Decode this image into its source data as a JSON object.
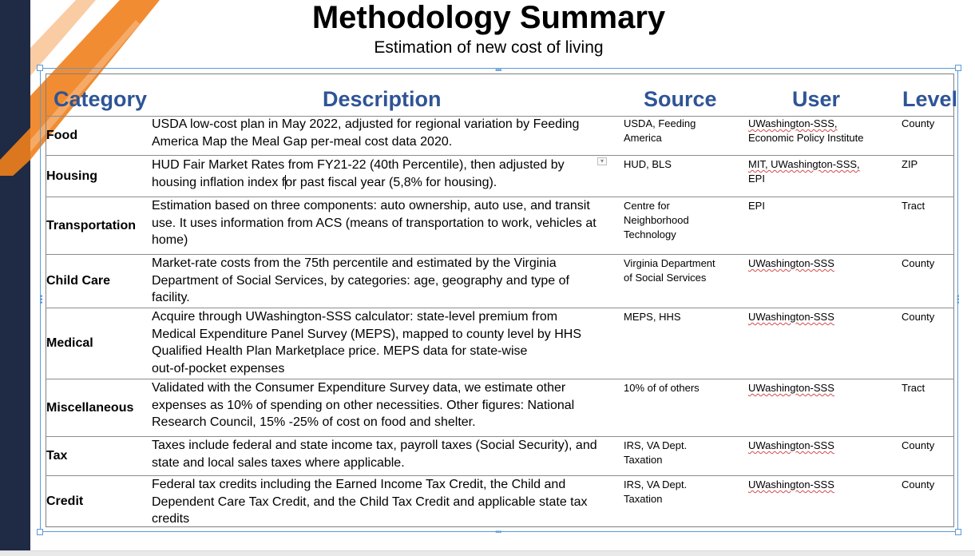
{
  "header": {
    "title": "Methodology Summary",
    "subtitle": "Estimation of new cost of living"
  },
  "table": {
    "columns": [
      "Category",
      "Description",
      "Source",
      "User",
      "Level"
    ],
    "rows": [
      {
        "category": "Food",
        "description": [
          "USDA low-cost plan in May 2022, adjusted for regional variation by Feeding",
          "America Map the Meal Gap per-meal cost data 2020."
        ],
        "source": [
          "USDA, Feeding",
          "America"
        ],
        "user": [
          "UWashington-SSS,",
          "Economic Policy Institute"
        ],
        "level": "County"
      },
      {
        "category": "Housing",
        "description": [
          "HUD Fair Market Rates from FY21-22 (40th Percentile), then adjusted by",
          "housing inflation index for past fiscal year (5,8% for housing)."
        ],
        "source": [
          "HUD, BLS"
        ],
        "user": [
          "MIT, UWashington-SSS,",
          " EPI"
        ],
        "level": "ZIP"
      },
      {
        "category": "Transportation",
        "description": [
          "Estimation based on three components: auto ownership, auto use, and transit",
          "use. It uses information from ACS (means of transportation to work, vehicles at",
          "home)"
        ],
        "source": [
          "Centre for",
          "Neighborhood",
          "Technology"
        ],
        "user": [
          "EPI"
        ],
        "level": "Tract"
      },
      {
        "category": "Child Care",
        "description": [
          "Market-rate costs from the 75th percentile and estimated by the Virginia",
          "Department of Social Services, by categories: age, geography and type of",
          "facility."
        ],
        "source": [
          "Virginia Department",
          "of Social Services"
        ],
        "user": [
          "UWashington-SSS"
        ],
        "level": "County"
      },
      {
        "category": "Medical",
        "description": [
          "Acquire through UWashington-SSS calculator: state-level premium from",
          "Medical Expenditure Panel Survey (MEPS), mapped to county level by HHS",
          "Qualified Health Plan Marketplace price. MEPS  data for state-wise",
          "out-of-pocket expenses"
        ],
        "source": [
          "MEPS, HHS"
        ],
        "user": [
          "UWashington-SSS"
        ],
        "level": "County"
      },
      {
        "category": "Miscellaneous",
        "description": [
          "Validated with the  Consumer Expenditure Survey data, we estimate other",
          "expenses as 10% of  spending on other necessities. Other figures: National",
          "Research Council, 15% -25% of cost on food and shelter."
        ],
        "source": [
          "10% of of others"
        ],
        "user": [
          "UWashington-SSS"
        ],
        "level": "Tract"
      },
      {
        "category": "Tax",
        "description": [
          "Taxes include federal and state income tax, payroll taxes (Social Security), and",
          "state and local sales taxes where applicable."
        ],
        "source": [
          "IRS, VA Dept.",
          "Taxation"
        ],
        "user": [
          "UWashington-SSS"
        ],
        "level": "County"
      },
      {
        "category": "Credit",
        "description": [
          "Federal tax credits including the Earned Income Tax Credit, the Child and",
          "Dependent Care Tax Credit, and the Child Tax Credit and applicable state tax",
          "credits"
        ],
        "source": [
          "IRS, VA Dept.",
          "Taxation"
        ],
        "user": [
          "UWashington-SSS"
        ],
        "level": "County"
      }
    ]
  },
  "colors": {
    "header_text": "#2f5496",
    "selection_frame": "#5b9bd5",
    "sidebar": "#1f2a44",
    "accent_orange": "#f07f1c"
  }
}
